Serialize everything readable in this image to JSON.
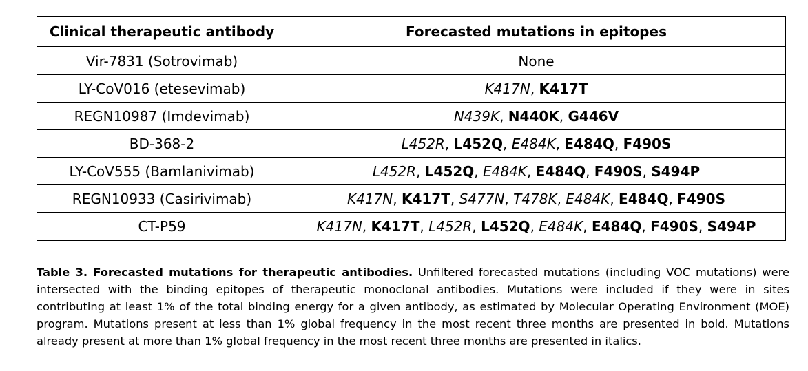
{
  "table": {
    "headers": [
      "Clinical therapeutic antibody",
      "Forecasted mutations in epitopes"
    ],
    "rows": [
      {
        "antibody": "Vir-7831 (Sotrovimab)",
        "mutations": [
          {
            "text": "None",
            "style": "normal"
          }
        ]
      },
      {
        "antibody": "LY-CoV016 (etesevimab)",
        "mutations": [
          {
            "text": "K417N",
            "style": "italic"
          },
          {
            "text": "K417T",
            "style": "bold"
          }
        ]
      },
      {
        "antibody": "REGN10987 (Imdevimab)",
        "mutations": [
          {
            "text": "N439K",
            "style": "italic"
          },
          {
            "text": "N440K",
            "style": "bold"
          },
          {
            "text": "G446V",
            "style": "bold"
          }
        ]
      },
      {
        "antibody": "BD-368-2",
        "mutations": [
          {
            "text": "L452R",
            "style": "italic"
          },
          {
            "text": "L452Q",
            "style": "bold"
          },
          {
            "text": "E484K",
            "style": "italic"
          },
          {
            "text": "E484Q",
            "style": "bold"
          },
          {
            "text": "F490S",
            "style": "bold"
          }
        ]
      },
      {
        "antibody": "LY-CoV555 (Bamlanivimab)",
        "mutations": [
          {
            "text": "L452R",
            "style": "italic"
          },
          {
            "text": "L452Q",
            "style": "bold"
          },
          {
            "text": "E484K",
            "style": "italic"
          },
          {
            "text": "E484Q",
            "style": "bold"
          },
          {
            "text": "F490S",
            "style": "bold"
          },
          {
            "text": "S494P",
            "style": "bold"
          }
        ]
      },
      {
        "antibody": "REGN10933 (Casirivimab)",
        "mutations": [
          {
            "text": "K417N",
            "style": "italic"
          },
          {
            "text": "K417T",
            "style": "bold"
          },
          {
            "text": "S477N",
            "style": "italic"
          },
          {
            "text": "T478K",
            "style": "italic"
          },
          {
            "text": "E484K",
            "style": "italic"
          },
          {
            "text": "E484Q",
            "style": "bold"
          },
          {
            "text": "F490S",
            "style": "bold"
          }
        ]
      },
      {
        "antibody": "CT-P59",
        "mutations": [
          {
            "text": "K417N",
            "style": "italic"
          },
          {
            "text": "K417T",
            "style": "bold"
          },
          {
            "text": "L452R",
            "style": "italic"
          },
          {
            "text": "L452Q",
            "style": "bold"
          },
          {
            "text": "E484K",
            "style": "italic"
          },
          {
            "text": "E484Q",
            "style": "bold"
          },
          {
            "text": "F490S",
            "style": "bold"
          },
          {
            "text": "S494P",
            "style": "bold"
          }
        ]
      }
    ]
  },
  "caption": {
    "label": "Table 3. Forecasted mutations for therapeutic antibodies.",
    "text": " Unfiltered forecasted mutations (including VOC mutations) were intersected with the binding epitopes of therapeutic monoclonal antibodies. Mutations were included if they were in sites contributing at least 1% of the total binding energy for a given antibody, as estimated by Molecular Operating Environment (MOE) program. Mutations present at less than 1% global frequency in the most recent three months are presented in bold. Mutations already present at more than 1% global frequency in the most recent three months are presented in italics."
  }
}
